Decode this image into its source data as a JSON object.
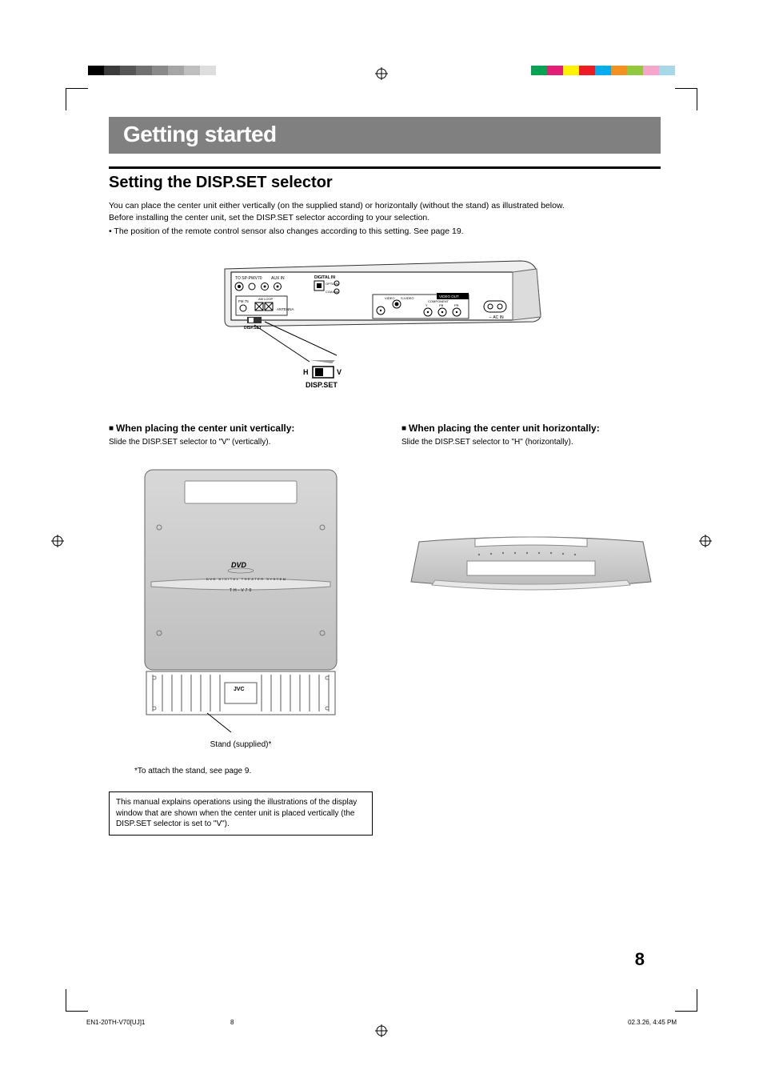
{
  "colors": {
    "band_bg": "#808080",
    "band_text": "#ffffff",
    "black": "#000000",
    "swatches_left": [
      "#000000",
      "#3b3b3b",
      "#565656",
      "#707070",
      "#8a8a8a",
      "#a5a5a5",
      "#bfbfbf",
      "#dedede",
      "#ffffff"
    ],
    "swatches_right": [
      "#00a453",
      "#e21e79",
      "#fff200",
      "#ed1c24",
      "#00adee",
      "#f4911e",
      "#92c83e",
      "#f6a6c9",
      "#a6d8e7"
    ]
  },
  "title": "Getting started",
  "section_title": "Setting the DISP.SET selector",
  "intro_lines": [
    "You can place the center unit either vertically (on the supplied stand) or horizontally (without the stand) as illustrated below.",
    "Before installing the center unit, set the DISP.SET selector according to your selection."
  ],
  "intro_bullet": "The position of the remote control sensor also changes according to this setting. See page 19.",
  "rear_panel_labels": {
    "to_sp": "TO SP-PWV70",
    "aux_in": "AUX IN",
    "digital_in": "DIGITAL IN",
    "optical": "OPTICAL",
    "coaxial": "COAXIAL",
    "fm": "FM 75",
    "am_loop": "AM LOOP",
    "antenna": "ANTENNA",
    "disp_set": "DISP.SET",
    "video_out": "VIDEO OUT",
    "video": "VIDEO",
    "svideo": "S-VIDEO",
    "component": "COMPONENT",
    "y": "Y",
    "pb": "PB",
    "pr": "PR",
    "power_cord": "AC IN",
    "hv_h": "H",
    "hv_v": "V"
  },
  "disp_switch_caption_top": "H ▭ V",
  "disp_switch_caption_bottom": "DISP.SET",
  "left": {
    "heading": "When placing the center unit vertically:",
    "text": "Slide the DISP.SET selector to \"V\" (vertically).",
    "device_labels": {
      "dvd": "DVD",
      "subtitle": "DVD DIGITAL THEATER SYSTEM",
      "model": "TH-V70",
      "brand": "JVC"
    },
    "stand_caption": "Stand (supplied)*",
    "attach_note": "*To attach the stand, see page 9."
  },
  "right": {
    "heading": "When placing the center unit horizontally:",
    "text": "Slide the DISP.SET selector to \"H\" (horizontally)."
  },
  "manual_box": "This manual explains operations using the illustrations of the display window that are shown when the center unit is placed vertically (the DISP.SET selector is set to \"V\").",
  "page_number": "8",
  "footer": {
    "left": "EN1-20TH-V70[UJ]1",
    "mid": "8",
    "right": "02.3.26, 4:45 PM"
  }
}
